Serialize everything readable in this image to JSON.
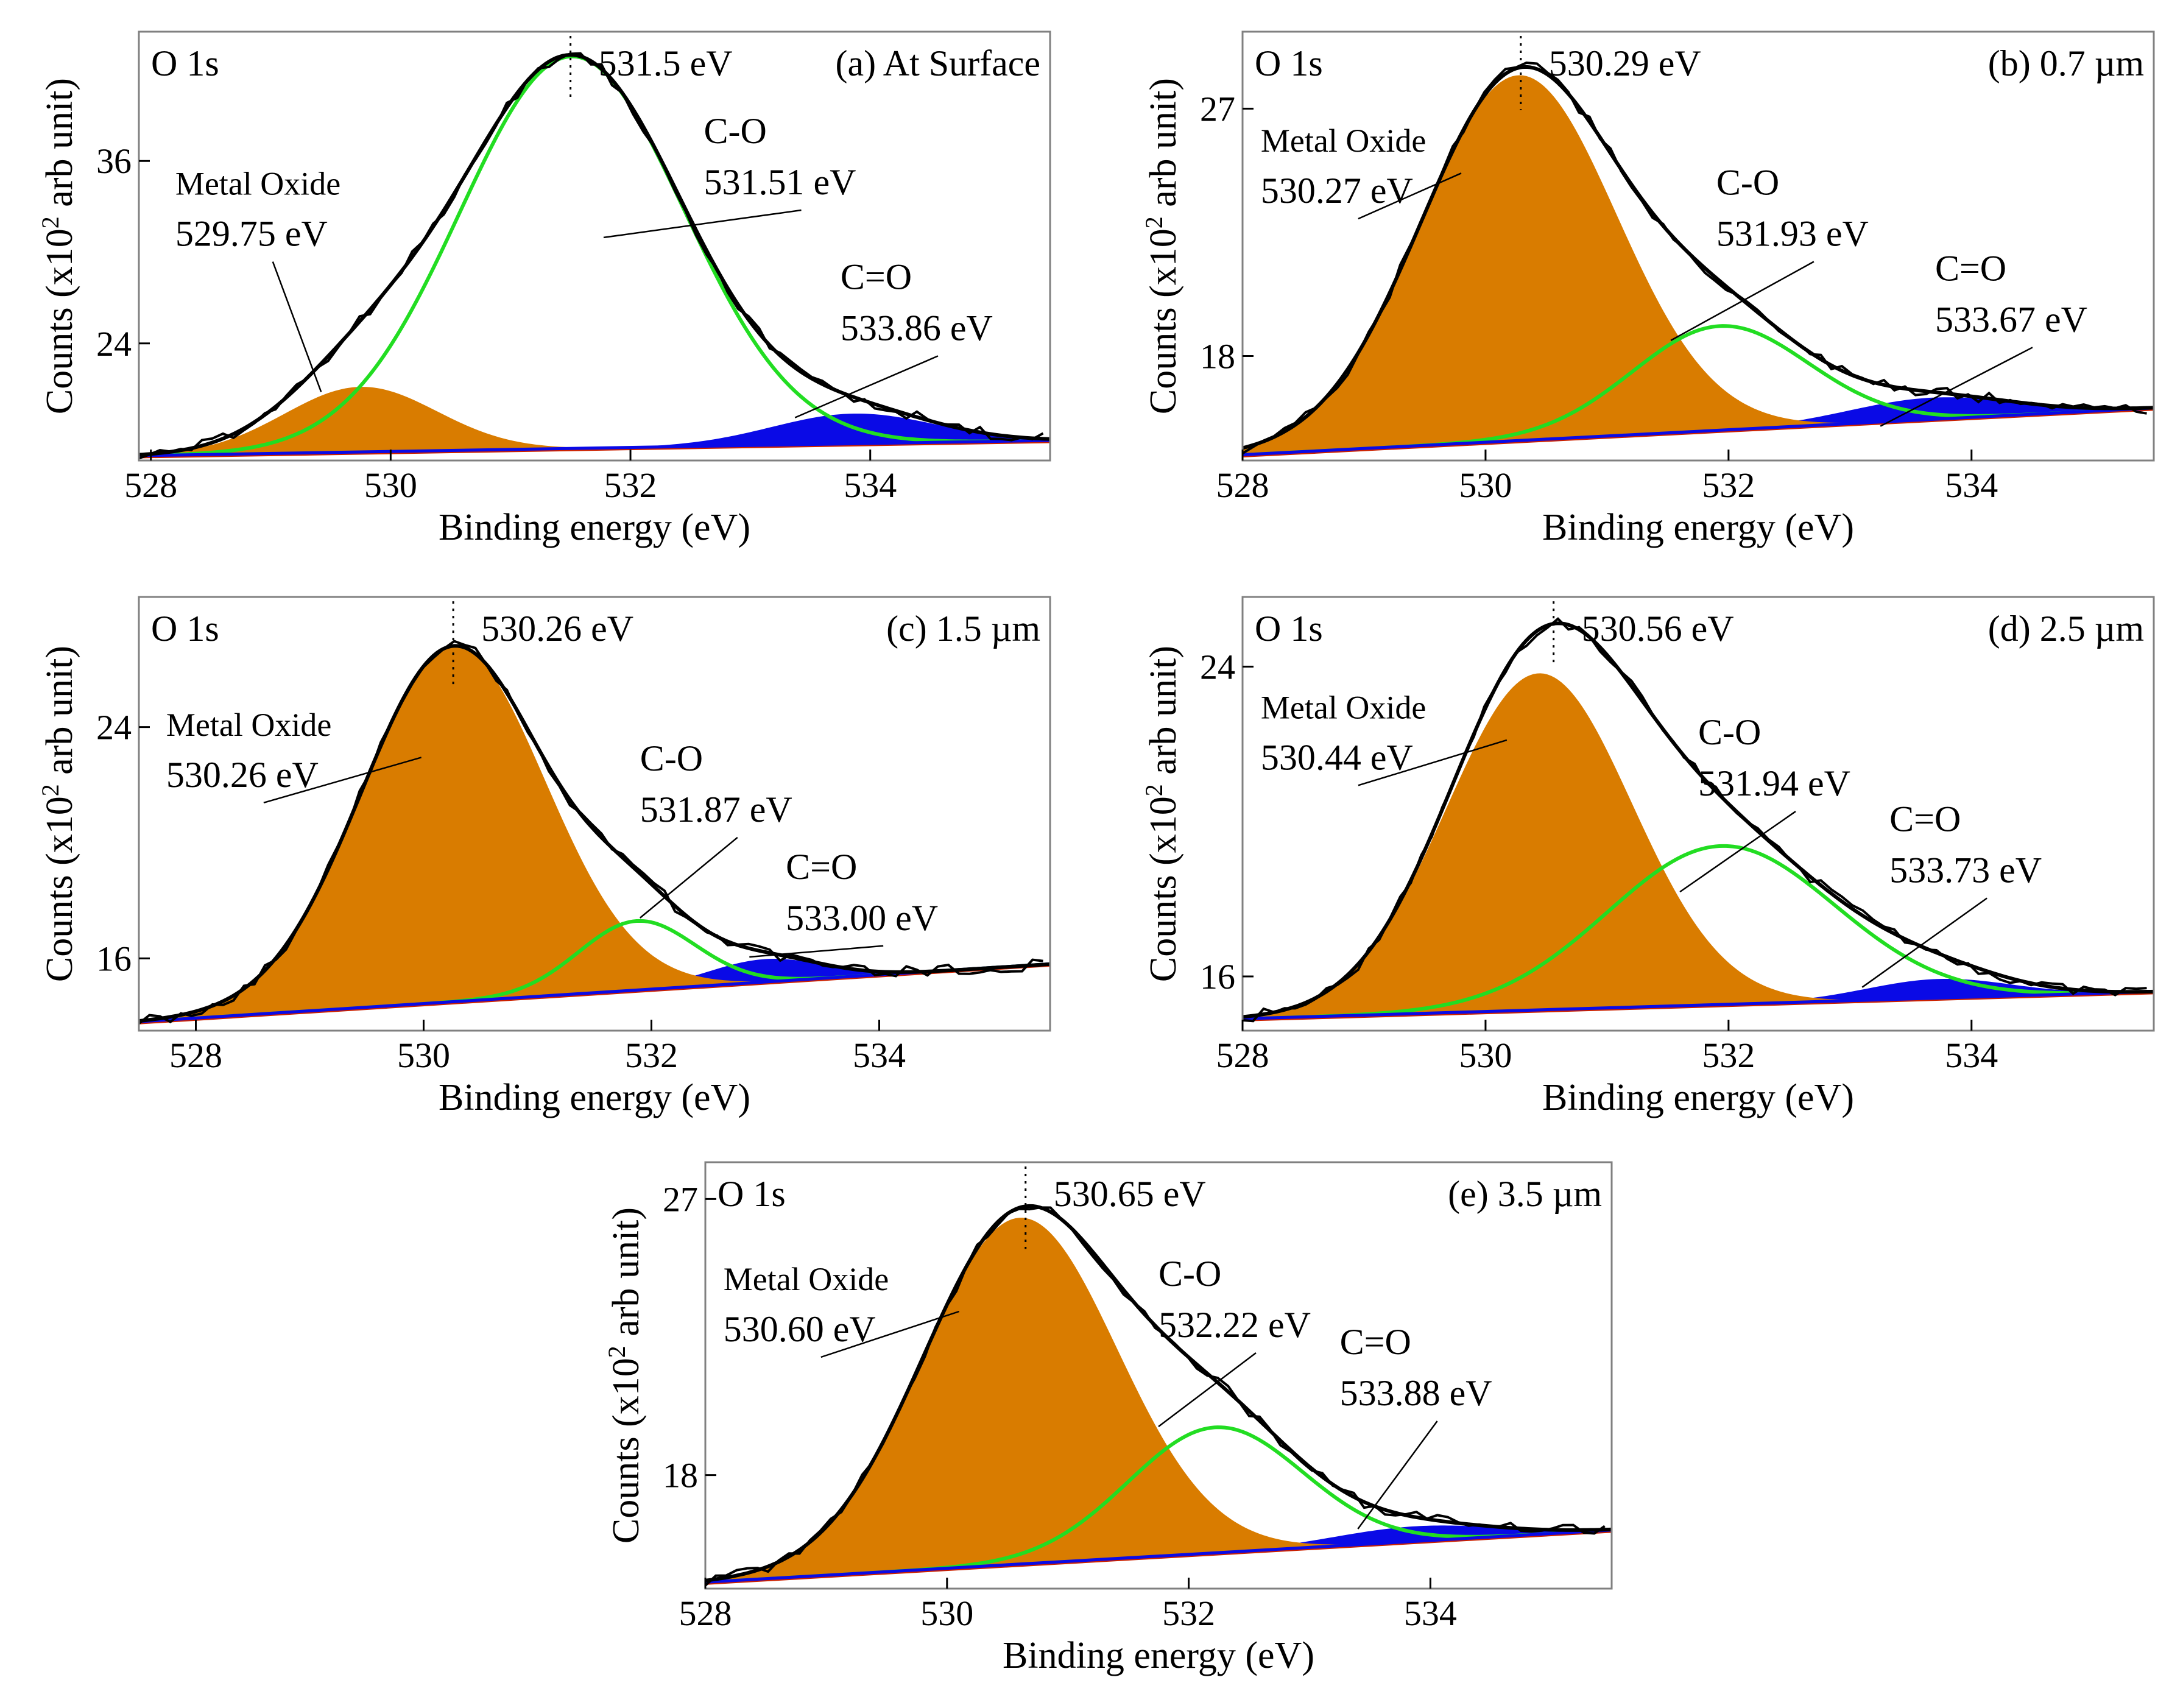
{
  "figure": {
    "xlabel": "Binding energy (eV)",
    "ylabel_main": "Counts (x10",
    "ylabel_sup": "2",
    "ylabel_tail": " arb unit)"
  },
  "colors": {
    "envelope": "#000000",
    "metal_oxide": "#d97c00",
    "c_o": "#22dd22",
    "c_eq_o": "#0a0ae6",
    "baseline": "#cc2200"
  },
  "chart_data": [
    {
      "panel": "a",
      "type": "area",
      "core_level": "O 1s",
      "label": "(a) At Surface",
      "peak_label": "531.5 eV",
      "peak_position": 531.5,
      "xlim": [
        527.9,
        535.5
      ],
      "ylim": [
        16.3,
        44.5
      ],
      "xticks": [
        528,
        530,
        532,
        534
      ],
      "yticks": [
        24,
        36
      ],
      "baseline": {
        "y_start": 16.6,
        "y_end": 17.6
      },
      "components": [
        {
          "name": "Metal Oxide",
          "energy_label": "529.75 eV",
          "center": 529.75,
          "fwhm": 1.5,
          "height": 4.3
        },
        {
          "name": "C-O",
          "energy_label": "531.51 eV",
          "center": 531.51,
          "fwhm": 2.2,
          "height": 25.8
        },
        {
          "name": "C=O",
          "energy_label": "533.86 eV",
          "center": 533.86,
          "fwhm": 1.6,
          "height": 2.0
        }
      ],
      "annotations": {
        "metal_oxide": "Metal Oxide",
        "c_o": "C-O",
        "c_eq_o": "C=O"
      }
    },
    {
      "panel": "b",
      "type": "area",
      "core_level": "O 1s",
      "label": "(b) 0.7 µm",
      "peak_label": "530.29 eV",
      "peak_position": 530.29,
      "xlim": [
        528.0,
        535.5
      ],
      "ylim": [
        14.2,
        29.8
      ],
      "xticks": [
        528,
        530,
        532,
        534
      ],
      "yticks": [
        18,
        27
      ],
      "baseline": {
        "y_start": 14.4,
        "y_end": 16.1
      },
      "components": [
        {
          "name": "Metal Oxide",
          "energy_label": "530.27 eV",
          "center": 530.27,
          "fwhm": 1.9,
          "height": 13.3
        },
        {
          "name": "C-O",
          "energy_label": "531.93 eV",
          "center": 531.93,
          "fwhm": 1.7,
          "height": 3.8
        },
        {
          "name": "C=O",
          "energy_label": "533.67 eV",
          "center": 533.67,
          "fwhm": 1.6,
          "height": 0.8
        }
      ],
      "annotations": {
        "metal_oxide": "Metal Oxide",
        "c_o": "C-O",
        "c_eq_o": "C=O"
      }
    },
    {
      "panel": "c",
      "type": "area",
      "core_level": "O 1s",
      "label": "(c) 1.5 µm",
      "peak_label": "530.26 eV",
      "peak_position": 530.26,
      "xlim": [
        527.5,
        535.5
      ],
      "ylim": [
        13.5,
        28.5
      ],
      "xticks": [
        528,
        530,
        532,
        534
      ],
      "yticks": [
        16,
        24
      ],
      "baseline": {
        "y_start": 13.8,
        "y_end": 15.8
      },
      "components": [
        {
          "name": "Metal Oxide",
          "energy_label": "530.26 eV",
          "center": 530.26,
          "fwhm": 1.9,
          "height": 12.3
        },
        {
          "name": "C-O",
          "energy_label": "531.87 eV",
          "center": 531.87,
          "fwhm": 1.2,
          "height": 2.4
        },
        {
          "name": "C=O",
          "energy_label": "533.00 eV",
          "center": 533.0,
          "fwhm": 1.2,
          "height": 0.8
        }
      ],
      "annotations": {
        "metal_oxide": "Metal Oxide",
        "c_o": "C-O",
        "c_eq_o": "C=O"
      }
    },
    {
      "panel": "d",
      "type": "area",
      "core_level": "O 1s",
      "label": "(d) 2.5 µm",
      "peak_label": "530.56 eV",
      "peak_position": 530.56,
      "xlim": [
        528.0,
        535.5
      ],
      "ylim": [
        14.6,
        25.8
      ],
      "xticks": [
        528,
        530,
        532,
        534
      ],
      "yticks": [
        16,
        24
      ],
      "baseline": {
        "y_start": 14.9,
        "y_end": 15.6
      },
      "components": [
        {
          "name": "Metal Oxide",
          "energy_label": "530.44 eV",
          "center": 530.44,
          "fwhm": 1.8,
          "height": 8.7
        },
        {
          "name": "C-O",
          "energy_label": "531.94 eV",
          "center": 531.94,
          "fwhm": 2.2,
          "height": 4.1
        },
        {
          "name": "C=O",
          "energy_label": "533.73 eV",
          "center": 533.73,
          "fwhm": 1.4,
          "height": 0.5
        }
      ],
      "annotations": {
        "metal_oxide": "Metal Oxide",
        "c_o": "C-O",
        "c_eq_o": "C=O"
      }
    },
    {
      "panel": "e",
      "type": "area",
      "core_level": "O 1s",
      "label": "(e) 3.5 µm",
      "peak_label": "530.65 eV",
      "peak_position": 530.65,
      "xlim": [
        528.0,
        535.5
      ],
      "ylim": [
        14.3,
        28.2
      ],
      "xticks": [
        528,
        530,
        532,
        534
      ],
      "yticks": [
        18,
        27
      ],
      "baseline": {
        "y_start": 14.5,
        "y_end": 16.2
      },
      "components": [
        {
          "name": "Metal Oxide",
          "energy_label": "530.60 eV",
          "center": 530.6,
          "fwhm": 1.9,
          "height": 11.3
        },
        {
          "name": "C-O",
          "energy_label": "532.22 eV",
          "center": 532.22,
          "fwhm": 1.7,
          "height": 4.1
        },
        {
          "name": "C=O",
          "energy_label": "533.88 eV",
          "center": 533.88,
          "fwhm": 1.6,
          "height": 0.5
        }
      ],
      "annotations": {
        "metal_oxide": "Metal Oxide",
        "c_o": "C-O",
        "c_eq_o": "C=O"
      }
    }
  ]
}
